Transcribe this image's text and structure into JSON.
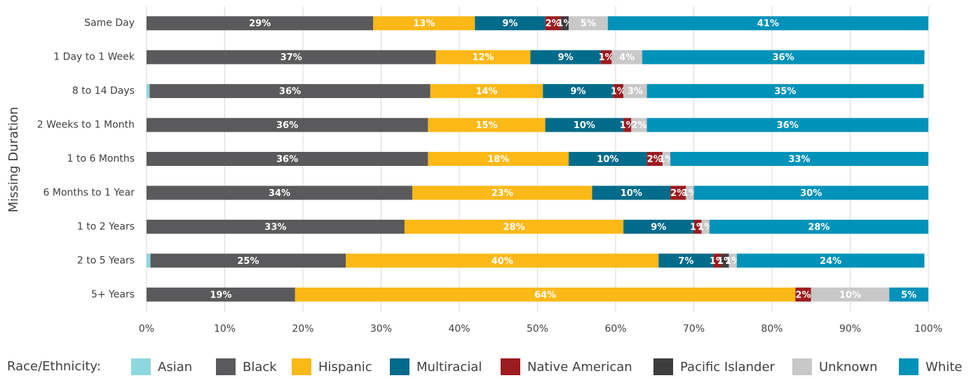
{
  "chart_data": {
    "type": "stacked_hbar",
    "y_label": "Missing Duration",
    "legend_title": "Race/Ethnicity:",
    "categories": [
      "Same Day",
      "1 Day to 1 Week",
      "8 to 14 Days",
      "2 Weeks to 1 Month",
      "1 to 6 Months",
      "6 Months to 1 Year",
      "1 to 2 Years",
      "2 to 5 Years",
      "5+ Years"
    ],
    "series": [
      {
        "name": "Asian",
        "color": "#8fd7e0",
        "values": [
          0,
          0,
          0.4,
          0,
          0,
          0,
          0,
          0.5,
          0
        ],
        "value_labels": [
          null,
          null,
          null,
          null,
          null,
          null,
          null,
          null,
          null
        ]
      },
      {
        "name": "Black",
        "color": "#5a5a5c",
        "values": [
          29,
          37,
          35.9,
          36,
          36,
          34,
          33,
          25,
          19
        ],
        "value_labels": [
          "29%",
          "37%",
          "36%",
          "36%",
          "36%",
          "34%",
          "33%",
          "25%",
          "19%"
        ]
      },
      {
        "name": "Hispanic",
        "color": "#fbb817",
        "values": [
          13,
          12.1,
          14.4,
          15,
          18,
          23,
          28,
          40,
          64
        ],
        "value_labels": [
          "13%",
          "12%",
          "14%",
          "15%",
          "18%",
          "23%",
          "28%",
          "40%",
          "64%"
        ]
      },
      {
        "name": "Multiracial",
        "color": "#006b8a",
        "values": [
          9,
          9,
          9,
          10,
          10,
          10,
          9,
          7,
          0
        ],
        "value_labels": [
          "9%",
          "9%",
          "9%",
          "10%",
          "10%",
          "10%",
          "9%",
          "7%",
          null
        ]
      },
      {
        "name": "Native American",
        "color": "#9b1b1f",
        "values": [
          2,
          1.4,
          1.3,
          1,
          2,
          2,
          1,
          1,
          2
        ],
        "value_labels": [
          "2%",
          "1%",
          "1%",
          "1%",
          "2%",
          "2%",
          "1%",
          "1%",
          "2%"
        ]
      },
      {
        "name": "Pacific Islander",
        "color": "#3d3d3d",
        "values": [
          1,
          0,
          0,
          0,
          0,
          0,
          0,
          1,
          0
        ],
        "value_labels": [
          "1%",
          null,
          null,
          null,
          null,
          null,
          null,
          "1%",
          null
        ]
      },
      {
        "name": "Unknown",
        "color": "#c8c8c8",
        "values": [
          5,
          3.9,
          3,
          2,
          1,
          1,
          1,
          1,
          10
        ],
        "value_labels": [
          "5%",
          "4%",
          "3%",
          "2%",
          "1%",
          "1%",
          "1%",
          "1%",
          "10%"
        ]
      },
      {
        "name": "White",
        "color": "#0092b9",
        "values": [
          41,
          36.1,
          35.4,
          36,
          33,
          30,
          28,
          24,
          5
        ],
        "value_labels": [
          "41%",
          "36%",
          "35%",
          "36%",
          "33%",
          "30%",
          "28%",
          "24%",
          "5%"
        ]
      }
    ],
    "xlim": [
      0,
      100
    ],
    "xticks": [
      {
        "value": 0,
        "label": "0%"
      },
      {
        "value": 10,
        "label": "10%"
      },
      {
        "value": 20,
        "label": "20%"
      },
      {
        "value": 30,
        "label": "30%"
      },
      {
        "value": 40,
        "label": "40%"
      },
      {
        "value": 50,
        "label": "50%"
      },
      {
        "value": 60,
        "label": "60%"
      },
      {
        "value": 70,
        "label": "70%"
      },
      {
        "value": 80,
        "label": "80%"
      },
      {
        "value": 90,
        "label": "90%"
      },
      {
        "value": 100,
        "label": "100%"
      }
    ],
    "grid": true
  }
}
